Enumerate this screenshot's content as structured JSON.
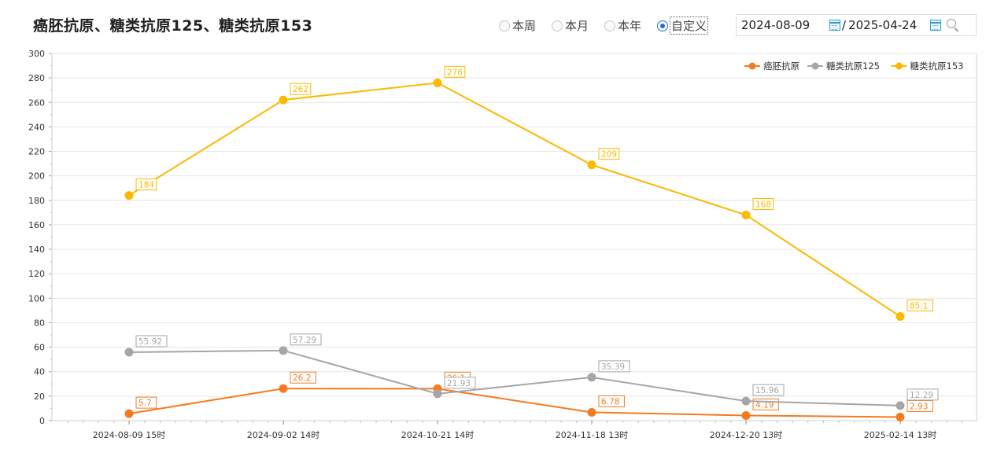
{
  "header": {
    "title": "癌胚抗原、糖类抗原125、糖类抗原153",
    "range_options": [
      {
        "label": "本周",
        "selected": false
      },
      {
        "label": "本月",
        "selected": false
      },
      {
        "label": "本年",
        "selected": false
      },
      {
        "label": "自定义",
        "selected": true
      }
    ],
    "date_start": "2024-08-09",
    "date_separator": "/",
    "date_end": "2025-04-24"
  },
  "chart_data": {
    "type": "line",
    "x": [
      "2024-08-09 15时",
      "2024-09-02 14时",
      "2024-10-21 14时",
      "2024-11-18 13时",
      "2024-12-20 13时",
      "2025-02-14 13时"
    ],
    "series": [
      {
        "name": "癌胚抗原",
        "color": "#f47b20",
        "values": [
          5.7,
          26.2,
          26.1,
          6.78,
          4.19,
          2.93
        ],
        "labels": [
          "5.7",
          "26.2",
          "26.1",
          "6.78",
          "4.19",
          "2.93"
        ]
      },
      {
        "name": "糖类抗原125",
        "color": "#a6a6a6",
        "values": [
          55.92,
          57.29,
          21.93,
          35.39,
          15.96,
          12.29
        ],
        "labels": [
          "55.92",
          "57.29",
          "21.93",
          "35.39",
          "15.96",
          "12.29"
        ]
      },
      {
        "name": "糖类抗原153",
        "color": "#fbb900",
        "values": [
          184,
          262,
          276,
          209,
          168,
          85.1
        ],
        "labels": [
          "184",
          "262",
          "276",
          "209",
          "168",
          "85.1"
        ]
      }
    ],
    "ylim": [
      0,
      300
    ],
    "yticks": [
      0,
      20,
      40,
      60,
      80,
      100,
      120,
      140,
      160,
      180,
      200,
      220,
      240,
      260,
      280,
      300
    ],
    "grid": true,
    "legend": "top-right",
    "xlabel": "",
    "ylabel": ""
  }
}
